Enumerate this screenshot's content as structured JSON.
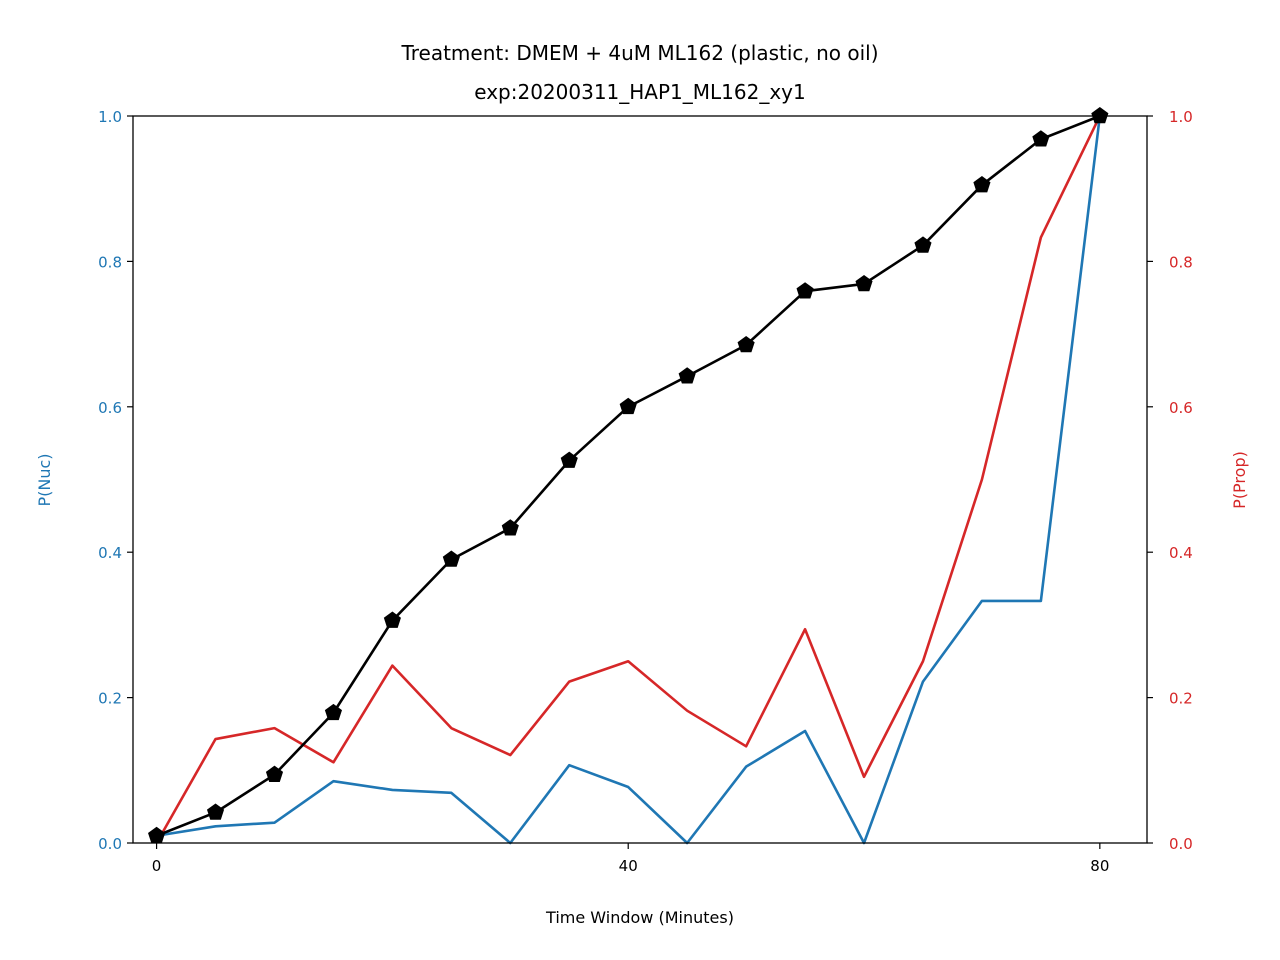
{
  "chart_data": {
    "type": "line",
    "title": "Treatment: DMEM + 4uM ML162 (plastic, no oil)",
    "subtitle": "exp:20200311_HAP1_ML162_xy1",
    "xlabel": "Time Window (Minutes)",
    "ylabel_left": "P(Nuc)",
    "ylabel_right": "P(Prop)",
    "xlim": [
      -2,
      84
    ],
    "ylim_left": [
      0,
      1
    ],
    "ylim_right": [
      0,
      1
    ],
    "x_ticks": [
      0,
      40,
      80
    ],
    "y_ticks_left": [
      "0.0",
      "0.2",
      "0.4",
      "0.6",
      "0.8",
      "1.0"
    ],
    "y_ticks_right": [
      "0.0",
      "0.2",
      "0.4",
      "0.6",
      "0.8",
      "1.0"
    ],
    "grid": false,
    "colors": {
      "nuc": "#1f77b4",
      "prop": "#d62728",
      "cumulative": "#000000"
    },
    "x": [
      0,
      5,
      10,
      15,
      20,
      25,
      30,
      35,
      40,
      45,
      50,
      55,
      60,
      65,
      70,
      75,
      80
    ],
    "series": [
      {
        "axis": "left",
        "color": "#1f77b4",
        "marker": "none",
        "values": [
          0.01,
          0.023,
          0.028,
          0.085,
          0.073,
          0.069,
          0.0,
          0.107,
          0.077,
          0.0,
          0.105,
          0.154,
          0.0,
          0.222,
          0.333,
          0.333,
          1.0
        ]
      },
      {
        "axis": "right",
        "color": "#d62728",
        "marker": "none",
        "values": [
          0.0,
          0.143,
          0.158,
          0.111,
          0.244,
          0.158,
          0.121,
          0.222,
          0.25,
          0.182,
          0.133,
          0.294,
          0.091,
          0.25,
          0.5,
          0.833,
          1.0
        ]
      },
      {
        "axis": "left",
        "color": "#000000",
        "marker": "pentagon",
        "values": [
          0.01,
          0.042,
          0.094,
          0.179,
          0.306,
          0.39,
          0.433,
          0.526,
          0.6,
          0.642,
          0.685,
          0.759,
          0.769,
          0.822,
          0.905,
          0.968,
          1.0
        ]
      }
    ]
  }
}
